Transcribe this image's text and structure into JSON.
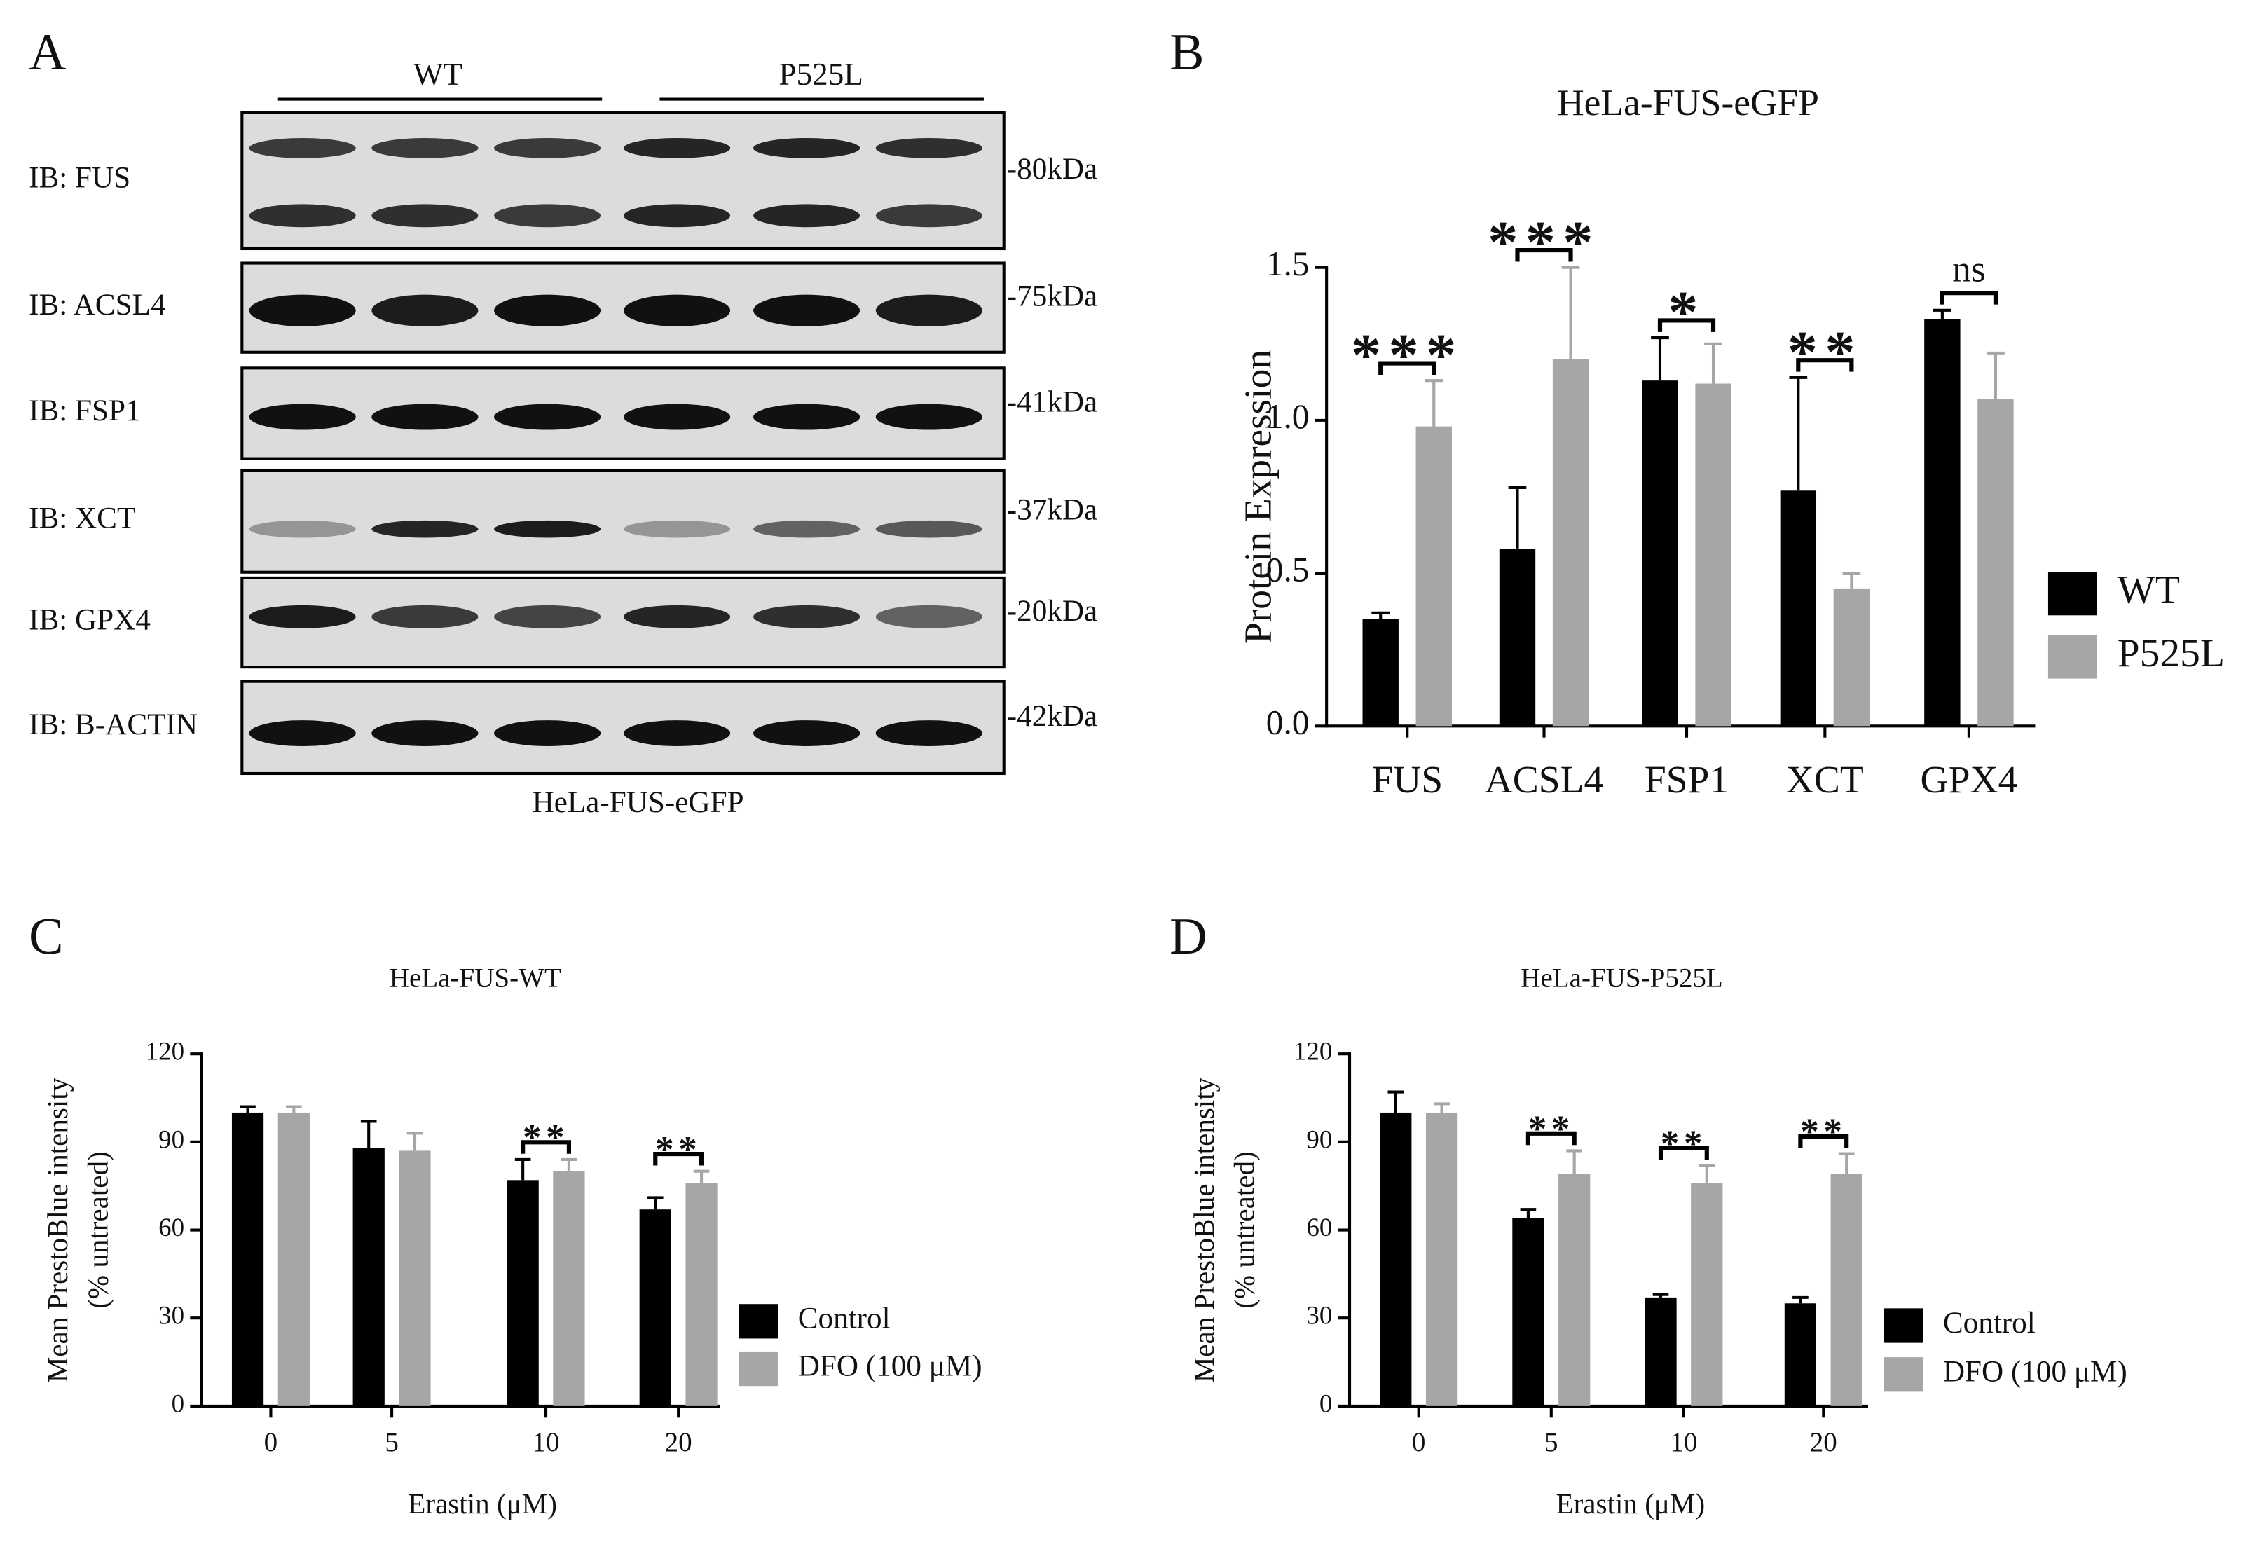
{
  "panels": [
    "A",
    "B",
    "C",
    "D"
  ],
  "blot": {
    "groups": [
      "WT",
      "P525L"
    ],
    "rows": [
      {
        "label": "IB: FUS",
        "size": "-80kDa"
      },
      {
        "label": "IB: ACSL4",
        "size": "-75kDa"
      },
      {
        "label": "IB: FSP1",
        "size": "-41kDa"
      },
      {
        "label": "IB: XCT",
        "size": "-37kDa"
      },
      {
        "label": "IB: GPX4",
        "size": "-20kDa"
      },
      {
        "label": "IB: B-ACTIN",
        "size": "-42kDa"
      }
    ],
    "caption": "HeLa-FUS-eGFP"
  },
  "chart_data": [
    {
      "type": "bar",
      "title": "HeLa-FUS-eGFP",
      "ylabel": "Protein Expression",
      "categories": [
        "FUS",
        "ACSL4",
        "FSP1",
        "XCT",
        "GPX4"
      ],
      "series": [
        {
          "name": "WT",
          "color": "#000000",
          "values": [
            0.35,
            0.58,
            1.13,
            0.77,
            1.33
          ],
          "errors": [
            0.02,
            0.2,
            0.14,
            0.37,
            0.03
          ]
        },
        {
          "name": "P525L",
          "color": "#a6a6a8",
          "values": [
            0.98,
            1.2,
            1.12,
            0.45,
            1.07
          ],
          "errors": [
            0.15,
            0.3,
            0.13,
            0.05,
            0.15
          ]
        }
      ],
      "annotations": [
        "***",
        "***",
        "*",
        "**",
        "ns"
      ],
      "ylim": [
        0,
        1.5
      ],
      "yticks": [
        {
          "value": 0,
          "label": "0.0"
        },
        0.5,
        {
          "value": 1,
          "label": "1.0"
        },
        1.5
      ]
    },
    {
      "type": "bar",
      "title": "HeLa-FUS-WT",
      "ylabel": [
        "Mean PrestoBlue intensity",
        "(% untreated)"
      ],
      "xlabel": "Erastin (μM)",
      "categories": [
        "0",
        "5",
        "10",
        "20"
      ],
      "series": [
        {
          "name": "Control",
          "color": "#000000",
          "values": [
            100,
            88,
            77,
            67
          ],
          "errors": [
            2,
            9,
            7,
            4
          ]
        },
        {
          "name": "DFO (100 μM)",
          "color": "#a6a6a8",
          "values": [
            100,
            87,
            80,
            76
          ],
          "errors": [
            2,
            6,
            4,
            4
          ]
        }
      ],
      "annotations": [
        null,
        null,
        "**",
        "**"
      ],
      "ylim": [
        0,
        120
      ],
      "yticks": [
        0,
        30,
        60,
        90,
        120
      ]
    },
    {
      "type": "bar",
      "title": "HeLa-FUS-P525L",
      "ylabel": [
        "Mean PrestoBlue intensity",
        "(% untreated)"
      ],
      "xlabel": "Erastin (μM)",
      "categories": [
        "0",
        "5",
        "10",
        "20"
      ],
      "series": [
        {
          "name": "Control",
          "color": "#000000",
          "values": [
            100,
            64,
            37,
            35
          ],
          "errors": [
            7,
            3,
            1,
            2
          ]
        },
        {
          "name": "DFO (100 μM)",
          "color": "#a6a6a8",
          "values": [
            100,
            79,
            76,
            79
          ],
          "errors": [
            3,
            8,
            6,
            7
          ]
        }
      ],
      "annotations": [
        null,
        "**",
        "**",
        "**"
      ],
      "ylim": [
        0,
        120
      ],
      "yticks": [
        0,
        30,
        60,
        90,
        120
      ]
    }
  ]
}
